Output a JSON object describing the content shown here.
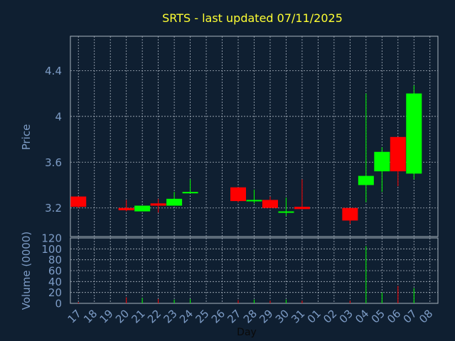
{
  "colors": {
    "background": "#0f1f31",
    "plot_background": "#0f1f31",
    "grid": "#aab4c0",
    "axis_text": "#7d9cc6",
    "title": "#ffff33",
    "up": "#00ff00",
    "down": "#ff0000",
    "xlabel": "#0a0a0a"
  },
  "chart_data": [
    {
      "type": "candlestick",
      "title": "SRTS - last updated 07/11/2025",
      "ylabel": "Price",
      "ylim": [
        2.95,
        4.7
      ],
      "yticks": [
        3.2,
        3.6,
        4,
        4.4
      ],
      "ytick_labels": [
        "3.2",
        "3.6",
        "4",
        "4.4"
      ],
      "grid": true,
      "x_categories": [
        "17",
        "18",
        "19",
        "20",
        "21",
        "22",
        "23",
        "24",
        "25",
        "26",
        "27",
        "28",
        "29",
        "30",
        "31",
        "01",
        "02",
        "03",
        "04",
        "05",
        "06",
        "07",
        "08"
      ],
      "candles": [
        {
          "x": "17",
          "open": 3.3,
          "high": 3.3,
          "low": 3.2,
          "close": 3.21
        },
        {
          "x": "20",
          "open": 3.2,
          "high": 3.27,
          "low": 3.17,
          "close": 3.18
        },
        {
          "x": "21",
          "open": 3.17,
          "high": 3.22,
          "low": 3.17,
          "close": 3.22
        },
        {
          "x": "22",
          "open": 3.24,
          "high": 3.28,
          "low": 3.16,
          "close": 3.22
        },
        {
          "x": "23",
          "open": 3.22,
          "high": 3.34,
          "low": 3.22,
          "close": 3.28
        },
        {
          "x": "24",
          "open": 3.33,
          "high": 3.45,
          "low": 3.33,
          "close": 3.34
        },
        {
          "x": "27",
          "open": 3.38,
          "high": 3.38,
          "low": 3.25,
          "close": 3.26
        },
        {
          "x": "28",
          "open": 3.26,
          "high": 3.36,
          "low": 3.24,
          "close": 3.27
        },
        {
          "x": "29",
          "open": 3.27,
          "high": 3.3,
          "low": 3.2,
          "close": 3.2
        },
        {
          "x": "30",
          "open": 3.17,
          "high": 3.29,
          "low": 3.13,
          "close": 3.17
        },
        {
          "x": "31",
          "open": 3.21,
          "high": 3.45,
          "low": 3.19,
          "close": 3.19
        },
        {
          "x": "03",
          "open": 3.2,
          "high": 3.2,
          "low": 3.06,
          "close": 3.09
        },
        {
          "x": "04",
          "open": 3.4,
          "high": 4.2,
          "low": 3.25,
          "close": 3.48
        },
        {
          "x": "05",
          "open": 3.52,
          "high": 3.73,
          "low": 3.34,
          "close": 3.69
        },
        {
          "x": "06",
          "open": 3.82,
          "high": 3.82,
          "low": 3.39,
          "close": 3.52
        },
        {
          "x": "07",
          "open": 3.5,
          "high": 4.27,
          "low": 3.45,
          "close": 4.2
        }
      ]
    },
    {
      "type": "bar",
      "ylabel": "Volume (0000)",
      "xlabel": "Day",
      "ylim": [
        0,
        120
      ],
      "yticks": [
        0,
        20,
        40,
        60,
        80,
        100,
        120
      ],
      "ytick_labels": [
        "0",
        "20",
        "40",
        "60",
        "80",
        "100",
        "120"
      ],
      "grid": true,
      "categories": [
        "17",
        "18",
        "19",
        "20",
        "21",
        "22",
        "23",
        "24",
        "25",
        "26",
        "27",
        "28",
        "29",
        "30",
        "31",
        "01",
        "02",
        "03",
        "04",
        "05",
        "06",
        "07",
        "08"
      ],
      "values": [
        2,
        0,
        0,
        11,
        10,
        8,
        7,
        8,
        0,
        0,
        6,
        7,
        5,
        7,
        5,
        0,
        0,
        5,
        105,
        20,
        32,
        28,
        0
      ]
    }
  ]
}
